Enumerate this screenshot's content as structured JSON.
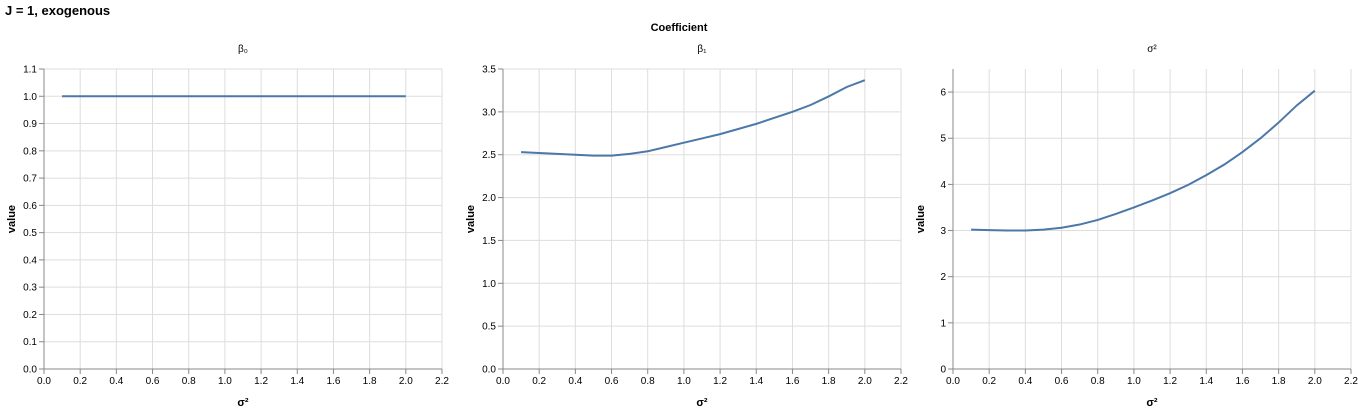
{
  "title": "J = 1, exogenous",
  "header": "Coefficient",
  "colors": {
    "line": "#4c78a8"
  },
  "chart_data": [
    {
      "type": "line",
      "facet_title": "β₀",
      "xlabel": "σ²",
      "ylabel": "value",
      "xlim": [
        0,
        2.2
      ],
      "ylim": [
        0,
        1.1
      ],
      "xticks": [
        0,
        0.2,
        0.4,
        0.6,
        0.8,
        1,
        1.2,
        1.4,
        1.6,
        1.8,
        2,
        2.2
      ],
      "xtick_labels": [
        "0.0",
        "0.2",
        "0.4",
        "0.6",
        "0.8",
        "1.0",
        "1.2",
        "1.4",
        "1.6",
        "1.8",
        "2.0",
        "2.2"
      ],
      "yticks": [
        0,
        0.1,
        0.2,
        0.3,
        0.4,
        0.5,
        0.6,
        0.7,
        0.8,
        0.9,
        1.0,
        1.1
      ],
      "ytick_labels": [
        "0.0",
        "0.1",
        "0.2",
        "0.3",
        "0.4",
        "0.5",
        "0.6",
        "0.7",
        "0.8",
        "0.9",
        "1.0",
        "1.1"
      ],
      "grid": true,
      "x": [
        0.1,
        0.2,
        0.3,
        0.4,
        0.5,
        0.6,
        0.7,
        0.8,
        0.9,
        1.0,
        1.1,
        1.2,
        1.3,
        1.4,
        1.5,
        1.6,
        1.7,
        1.8,
        1.9,
        2.0
      ],
      "y": [
        1.0,
        1.0,
        1.0,
        1.0,
        1.0,
        1.0,
        1.0,
        1.0,
        1.0,
        1.0,
        1.0,
        1.0,
        1.0,
        1.0,
        1.0,
        1.0,
        1.0,
        1.0,
        1.0,
        1.0
      ]
    },
    {
      "type": "line",
      "facet_title": "β₁",
      "xlabel": "σ²",
      "ylabel": "value",
      "xlim": [
        0,
        2.2
      ],
      "ylim": [
        0,
        3.5
      ],
      "xticks": [
        0,
        0.2,
        0.4,
        0.6,
        0.8,
        1,
        1.2,
        1.4,
        1.6,
        1.8,
        2,
        2.2
      ],
      "xtick_labels": [
        "0.0",
        "0.2",
        "0.4",
        "0.6",
        "0.8",
        "1.0",
        "1.2",
        "1.4",
        "1.6",
        "1.8",
        "2.0",
        "2.2"
      ],
      "yticks": [
        0,
        0.5,
        1,
        1.5,
        2,
        2.5,
        3,
        3.5
      ],
      "ytick_labels": [
        "0.0",
        "0.5",
        "1.0",
        "1.5",
        "2.0",
        "2.5",
        "3.0",
        "3.5"
      ],
      "grid": true,
      "x": [
        0.1,
        0.2,
        0.3,
        0.4,
        0.5,
        0.6,
        0.7,
        0.8,
        0.9,
        1.0,
        1.1,
        1.2,
        1.3,
        1.4,
        1.5,
        1.6,
        1.7,
        1.8,
        1.9,
        2.0
      ],
      "y": [
        2.53,
        2.52,
        2.51,
        2.5,
        2.49,
        2.49,
        2.51,
        2.54,
        2.59,
        2.64,
        2.69,
        2.74,
        2.8,
        2.86,
        2.93,
        3.0,
        3.08,
        3.18,
        3.29,
        3.37
      ]
    },
    {
      "type": "line",
      "facet_title": "σ²",
      "xlabel": "σ²",
      "ylabel": "value",
      "xlim": [
        0,
        2.2
      ],
      "ylim": [
        0,
        6.5
      ],
      "xticks": [
        0,
        0.2,
        0.4,
        0.6,
        0.8,
        1,
        1.2,
        1.4,
        1.6,
        1.8,
        2,
        2.2
      ],
      "xtick_labels": [
        "0.0",
        "0.2",
        "0.4",
        "0.6",
        "0.8",
        "1.0",
        "1.2",
        "1.4",
        "1.6",
        "1.8",
        "2.0",
        "2.2"
      ],
      "yticks": [
        0,
        1,
        2,
        3,
        4,
        5,
        6
      ],
      "ytick_labels": [
        "0",
        "1",
        "2",
        "3",
        "4",
        "5",
        "6"
      ],
      "grid": true,
      "x": [
        0.1,
        0.2,
        0.3,
        0.4,
        0.5,
        0.6,
        0.7,
        0.8,
        0.9,
        1.0,
        1.1,
        1.2,
        1.3,
        1.4,
        1.5,
        1.6,
        1.7,
        1.8,
        1.9,
        2.0
      ],
      "y": [
        3.02,
        3.01,
        3.0,
        3.0,
        3.02,
        3.06,
        3.13,
        3.23,
        3.36,
        3.5,
        3.65,
        3.81,
        3.99,
        4.2,
        4.43,
        4.7,
        5.0,
        5.34,
        5.71,
        6.03
      ]
    }
  ]
}
